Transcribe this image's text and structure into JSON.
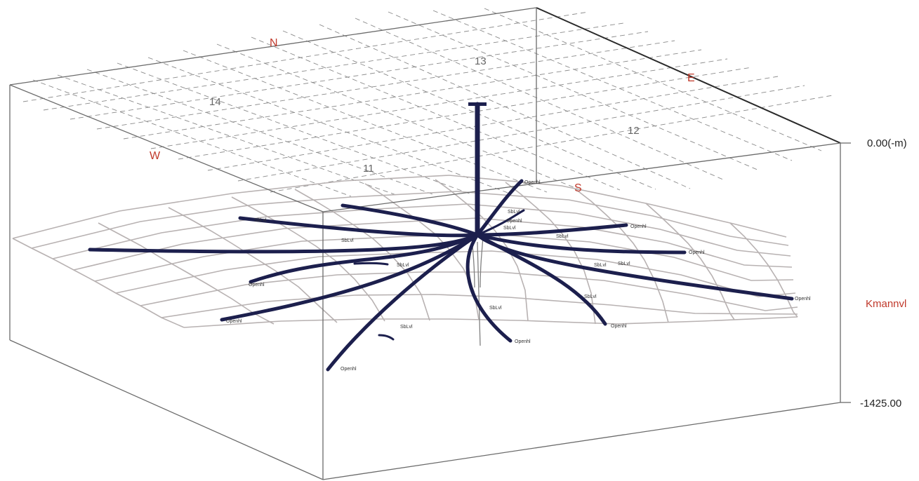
{
  "compass": {
    "north": "N",
    "east": "E",
    "south": "S",
    "west": "W"
  },
  "block_numbers": [
    "14",
    "13",
    "12",
    "11"
  ],
  "depth_axis": {
    "top_label": "0.00(-m)",
    "bottom_label": "-1425.00"
  },
  "horizon": {
    "name": "Kmannvl"
  },
  "well_labels": {
    "open": "Openhl",
    "side": "SbLvl"
  },
  "colors": {
    "well": "#1c1f4d",
    "compass": "#c0392b",
    "horizon_label": "#c0392b",
    "horizon_mesh": "#b8b2b2"
  }
}
